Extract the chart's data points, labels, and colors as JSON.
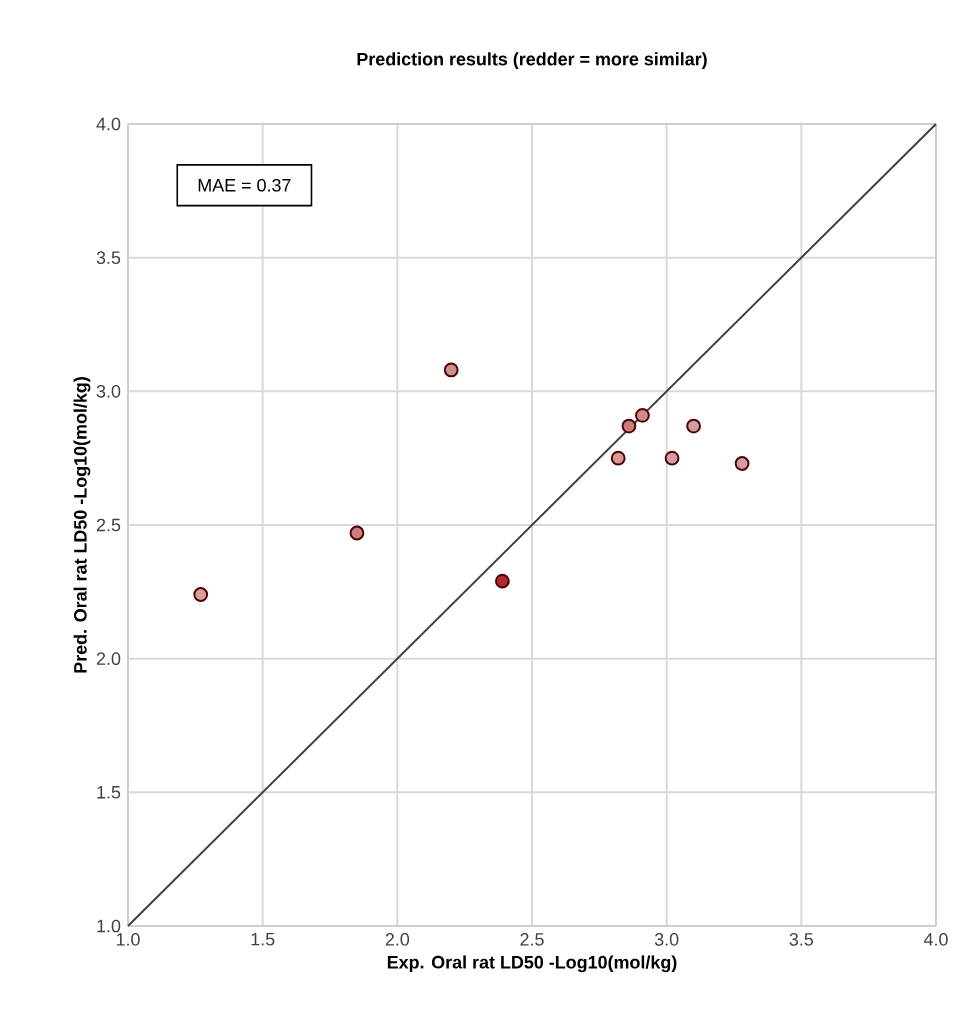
{
  "chart_data": {
    "type": "scatter",
    "title": "Prediction results (redder = more similar)",
    "xlabel": "Exp. Oral rat LD50 -Log10(mol/kg)",
    "ylabel": "Pred. Oral rat LD50 -Log10(mol/kg)",
    "annotations": [
      "MAE = 0.37"
    ],
    "series": [
      {
        "type": "scatter",
        "x": [
          1.27,
          1.85,
          2.2,
          2.39,
          2.82,
          2.86,
          2.91,
          3.02,
          3.1,
          3.28
        ],
        "values": [
          2.24,
          2.47,
          3.08,
          2.29,
          2.75,
          2.87,
          2.91,
          2.75,
          2.87,
          2.73
        ],
        "colors": [
          "#d9a0a0",
          "#cc7f7f",
          "#c99090",
          "#b02a2a",
          "#d49a9a",
          "#cc7a7a",
          "#d08a8a",
          "#d0a0a0",
          "#d0a0a0",
          "#d0a0a0"
        ],
        "marker": "circle"
      },
      {
        "type": "line",
        "x": [
          1.0,
          4.0
        ],
        "values": [
          1.0,
          4.0
        ],
        "color": "#404040",
        "line_style": "solid"
      }
    ],
    "xlim": [
      1.0,
      4.0
    ],
    "ylim": [
      1.0,
      4.0
    ],
    "xticks": [
      {
        "value": 1.0,
        "label": "1.0"
      },
      {
        "value": 1.5,
        "label": "1.5"
      },
      {
        "value": 2.0,
        "label": "2.0"
      },
      {
        "value": 2.5,
        "label": "2.5"
      },
      {
        "value": 3.0,
        "label": "3.0"
      },
      {
        "value": 3.5,
        "label": "3.5"
      },
      {
        "value": 4.0,
        "label": "4.0"
      }
    ],
    "yticks": [
      {
        "value": 1.0,
        "label": "1.0"
      },
      {
        "value": 1.5,
        "label": "1.5"
      },
      {
        "value": 2.0,
        "label": "2.0"
      },
      {
        "value": 2.5,
        "label": "2.5"
      },
      {
        "value": 3.0,
        "label": "3.0"
      },
      {
        "value": 3.5,
        "label": "3.5"
      },
      {
        "value": 4.0,
        "label": "4.0"
      }
    ],
    "grid": true
  }
}
